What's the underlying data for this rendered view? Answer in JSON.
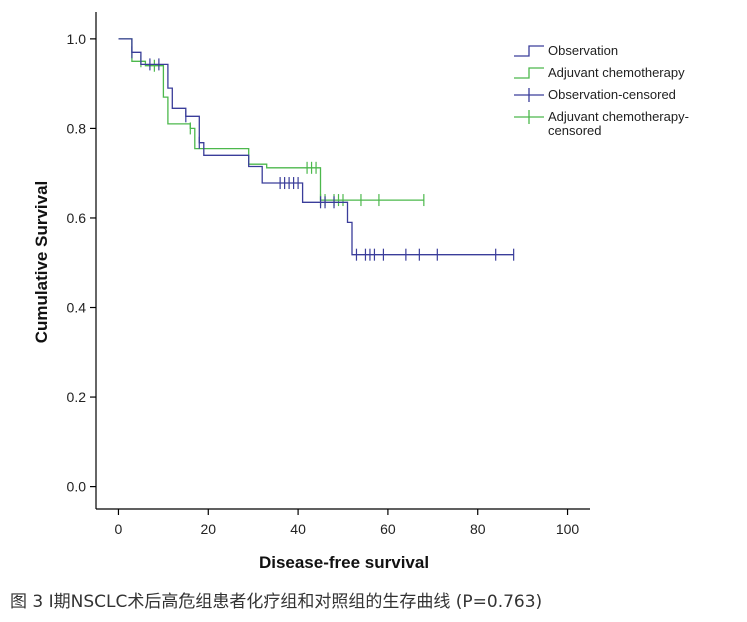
{
  "chart_data": {
    "type": "line",
    "subtype": "kaplan-meier",
    "xlabel": "Disease-free survival",
    "ylabel": "Cumulative Survival",
    "xlim": [
      -5,
      105
    ],
    "ylim": [
      -0.05,
      1.06
    ],
    "xticks": [
      0,
      20,
      40,
      60,
      80,
      100
    ],
    "yticks": [
      0.0,
      0.2,
      0.4,
      0.6,
      0.8,
      1.0
    ],
    "xtick_labels": [
      "0",
      "20",
      "40",
      "60",
      "80",
      "100"
    ],
    "ytick_labels": [
      "0.0",
      "0.2",
      "0.4",
      "0.6",
      "0.8",
      "1.0"
    ],
    "grid": false,
    "legend_position": "top-right",
    "series": [
      {
        "name": "Observation",
        "color": "#3a3d9a",
        "steps": [
          [
            0,
            1.0
          ],
          [
            3,
            0.97
          ],
          [
            5,
            0.943
          ],
          [
            11,
            0.89
          ],
          [
            12,
            0.845
          ],
          [
            15,
            0.827
          ],
          [
            18,
            0.768
          ],
          [
            19,
            0.74
          ],
          [
            29,
            0.715
          ],
          [
            32,
            0.678
          ],
          [
            41,
            0.635
          ],
          [
            51,
            0.59
          ],
          [
            52,
            0.518
          ],
          [
            88,
            0.518
          ]
        ],
        "censored": [
          3,
          7,
          9,
          15,
          18,
          36,
          37,
          38,
          39,
          40,
          45,
          46,
          48,
          53,
          55,
          56,
          57,
          59,
          64,
          67,
          71,
          84,
          88
        ]
      },
      {
        "name": "Adjuvant chemotherapy",
        "color": "#4cb84c",
        "steps": [
          [
            0,
            1.0
          ],
          [
            3,
            0.95
          ],
          [
            6,
            0.94
          ],
          [
            10,
            0.87
          ],
          [
            11,
            0.81
          ],
          [
            16,
            0.8
          ],
          [
            17,
            0.755
          ],
          [
            29,
            0.72
          ],
          [
            33,
            0.712
          ],
          [
            45,
            0.64
          ],
          [
            68,
            0.64
          ]
        ],
        "censored": [
          5,
          8,
          16,
          42,
          43,
          44,
          45,
          46,
          48,
          49,
          50,
          54,
          58,
          68
        ]
      }
    ],
    "legend": [
      {
        "label": "Observation",
        "symbol": "step",
        "color": "#3a3d9a"
      },
      {
        "label": "Adjuvant chemotherapy",
        "symbol": "step",
        "color": "#4cb84c"
      },
      {
        "label": "Observation-censored",
        "symbol": "cross",
        "color": "#3a3d9a"
      },
      {
        "label": "Adjuvant chemotherapy-censored",
        "lines": [
          "Adjuvant chemotherapy-",
          "censored"
        ],
        "symbol": "cross",
        "color": "#4cb84c"
      }
    ]
  },
  "caption": "图 3  I期NSCLC术后高危组患者化疗组和对照组的生存曲线 (P=0.763)"
}
